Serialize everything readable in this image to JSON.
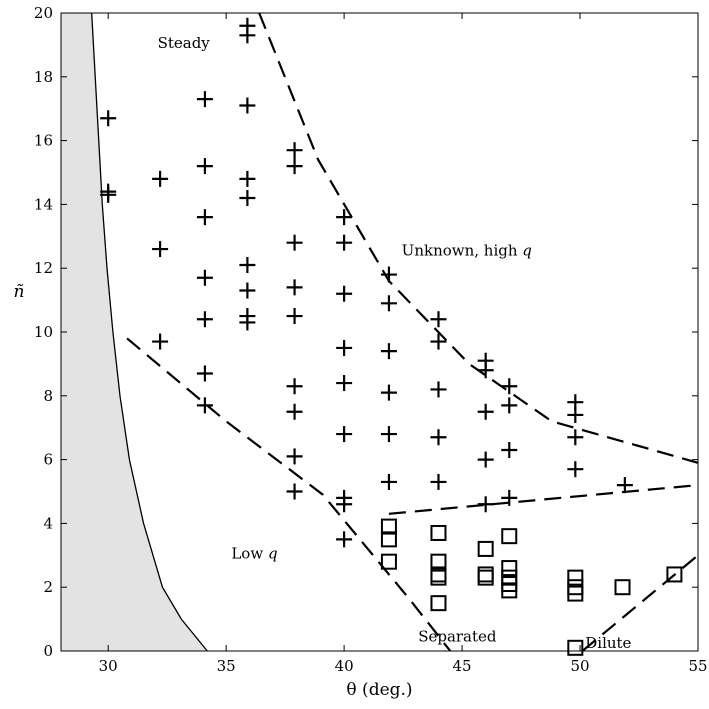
{
  "chart_data": {
    "type": "scatter",
    "xlabel": "θ (deg.)",
    "ylabel": "ñ",
    "xlim": [
      28,
      55
    ],
    "ylim": [
      0,
      20
    ],
    "xticks": [
      30,
      35,
      40,
      45,
      50,
      55
    ],
    "yticks": [
      0,
      2,
      4,
      6,
      8,
      10,
      12,
      14,
      16,
      18,
      20
    ],
    "grid": false,
    "legend": "none",
    "series": [
      {
        "marker": "plus",
        "points": [
          [
            30,
            16.7
          ],
          [
            30,
            14.4
          ],
          [
            30,
            14.3
          ],
          [
            32.2,
            14.8
          ],
          [
            32.2,
            12.6
          ],
          [
            32.2,
            9.7
          ],
          [
            34.1,
            17.3
          ],
          [
            34.1,
            15.2
          ],
          [
            34.1,
            13.6
          ],
          [
            34.1,
            11.7
          ],
          [
            34.1,
            10.4
          ],
          [
            34.1,
            8.7
          ],
          [
            34.1,
            7.7
          ],
          [
            35.9,
            19.6
          ],
          [
            35.9,
            19.3
          ],
          [
            35.9,
            17.1
          ],
          [
            35.9,
            14.8
          ],
          [
            35.9,
            14.2
          ],
          [
            35.9,
            12.1
          ],
          [
            35.9,
            11.3
          ],
          [
            35.9,
            10.5
          ],
          [
            35.9,
            10.3
          ],
          [
            37.9,
            15.7
          ],
          [
            37.9,
            15.2
          ],
          [
            37.9,
            12.8
          ],
          [
            37.9,
            11.4
          ],
          [
            37.9,
            10.5
          ],
          [
            37.9,
            8.3
          ],
          [
            37.9,
            7.5
          ],
          [
            37.9,
            6.1
          ],
          [
            37.9,
            5.0
          ],
          [
            40,
            13.6
          ],
          [
            40,
            12.8
          ],
          [
            40,
            11.2
          ],
          [
            40,
            9.5
          ],
          [
            40,
            8.4
          ],
          [
            40,
            6.8
          ],
          [
            40,
            4.8
          ],
          [
            40,
            4.6
          ],
          [
            40,
            3.5
          ],
          [
            41.9,
            11.8
          ],
          [
            41.9,
            10.9
          ],
          [
            41.9,
            9.4
          ],
          [
            41.9,
            8.1
          ],
          [
            41.9,
            6.8
          ],
          [
            41.9,
            5.3
          ],
          [
            44,
            10.4
          ],
          [
            44,
            9.7
          ],
          [
            44,
            8.2
          ],
          [
            44,
            6.7
          ],
          [
            44,
            5.3
          ],
          [
            46,
            9.1
          ],
          [
            46,
            8.8
          ],
          [
            46,
            7.5
          ],
          [
            46,
            6.0
          ],
          [
            46,
            4.6
          ],
          [
            47,
            8.3
          ],
          [
            47,
            7.7
          ],
          [
            47,
            6.3
          ],
          [
            47,
            4.8
          ],
          [
            49.8,
            7.8
          ],
          [
            49.8,
            7.4
          ],
          [
            49.8,
            6.7
          ],
          [
            49.8,
            5.7
          ],
          [
            51.9,
            5.2
          ]
        ]
      },
      {
        "marker": "square",
        "points": [
          [
            41.9,
            3.9
          ],
          [
            41.9,
            3.5
          ],
          [
            41.9,
            2.8
          ],
          [
            44,
            3.7
          ],
          [
            44,
            2.8
          ],
          [
            44,
            2.4
          ],
          [
            44,
            2.3
          ],
          [
            44,
            1.5
          ],
          [
            46,
            3.2
          ],
          [
            46,
            2.4
          ],
          [
            46,
            2.3
          ],
          [
            47,
            3.6
          ],
          [
            47,
            2.6
          ],
          [
            47,
            2.3
          ],
          [
            47,
            2.1
          ],
          [
            47,
            1.9
          ],
          [
            49.8,
            2.3
          ],
          [
            49.8,
            2.0
          ],
          [
            49.8,
            1.8
          ],
          [
            49.8,
            0.1
          ],
          [
            51.8,
            2.0
          ],
          [
            54,
            2.4
          ]
        ]
      }
    ],
    "boundaries": [
      {
        "style": "solid",
        "fill": "#e3e3e3",
        "points": [
          [
            29.3,
            20
          ],
          [
            29.45,
            18
          ],
          [
            29.6,
            16
          ],
          [
            29.75,
            14
          ],
          [
            29.95,
            12
          ],
          [
            30.2,
            10
          ],
          [
            30.5,
            8
          ],
          [
            30.9,
            6
          ],
          [
            31.5,
            4
          ],
          [
            32.3,
            2
          ],
          [
            33.1,
            1
          ],
          [
            34.2,
            0
          ]
        ]
      },
      {
        "style": "dashed",
        "points": [
          [
            36.4,
            20
          ],
          [
            38.9,
            15.4
          ],
          [
            41.9,
            11.6
          ],
          [
            45.3,
            9.0
          ],
          [
            48.8,
            7.2
          ],
          [
            55,
            5.9
          ]
        ]
      },
      {
        "style": "dashed",
        "points": [
          [
            30.8,
            9.8
          ],
          [
            35,
            7.2
          ],
          [
            39.1,
            4.9
          ],
          [
            42.8,
            1.6
          ],
          [
            44.5,
            0
          ]
        ]
      },
      {
        "style": "dashed",
        "points": [
          [
            41.9,
            4.3
          ],
          [
            55,
            5.2
          ]
        ]
      },
      {
        "style": "dashed",
        "points": [
          [
            50.1,
            0
          ],
          [
            55,
            3.0
          ]
        ]
      }
    ],
    "annotations": [
      {
        "text": "Steady",
        "x": 33.2,
        "y": 18.9
      },
      {
        "text": "Unknown, high q",
        "x": 45.2,
        "y": 12.4
      },
      {
        "text": "Low q",
        "x": 36.2,
        "y": 2.9
      },
      {
        "text": "Separated",
        "x": 44.8,
        "y": 0.3
      },
      {
        "text": "Dilute",
        "x": 51.2,
        "y": 0.1
      }
    ]
  }
}
